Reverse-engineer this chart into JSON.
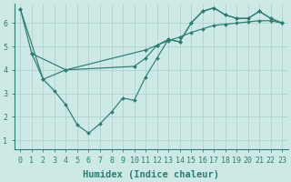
{
  "bg_color": "#cce9e6",
  "line_color": "#2e7d6e",
  "grid_color": "#aed4cf",
  "xlabel": "Humidex (Indice chaleur)",
  "xlabel_fontsize": 7.5,
  "tick_fontsize": 6.0,
  "xlim": [
    -0.5,
    23.5
  ],
  "ylim": [
    0.6,
    6.85
  ],
  "yticks": [
    1,
    2,
    3,
    4,
    5,
    6
  ],
  "xticks": [
    0,
    1,
    2,
    3,
    4,
    5,
    6,
    7,
    8,
    9,
    10,
    11,
    12,
    13,
    14,
    15,
    16,
    17,
    18,
    19,
    20,
    21,
    22,
    23
  ],
  "series": [
    {
      "x": [
        0,
        1,
        2,
        3,
        4,
        5,
        6,
        7,
        8,
        9,
        10,
        11,
        12,
        13,
        14,
        15,
        16,
        17,
        18,
        19,
        20,
        21,
        22,
        23
      ],
      "y": [
        6.6,
        4.7,
        3.6,
        3.1,
        2.5,
        1.65,
        1.3,
        1.7,
        2.2,
        2.8,
        2.7,
        3.7,
        4.5,
        5.3,
        5.2,
        6.0,
        6.5,
        6.65,
        6.35,
        6.2,
        6.2,
        6.5,
        6.2,
        6.0
      ]
    },
    {
      "x": [
        1,
        4,
        11,
        12,
        13,
        14,
        15,
        16,
        17,
        18,
        19,
        20,
        21,
        22,
        23
      ],
      "y": [
        4.7,
        4.0,
        4.85,
        5.05,
        5.25,
        5.4,
        5.6,
        5.75,
        5.9,
        5.95,
        6.0,
        6.05,
        6.1,
        6.1,
        6.0
      ]
    },
    {
      "x": [
        0,
        2,
        4,
        10,
        11,
        12,
        13,
        14,
        15,
        16,
        17,
        18,
        19,
        20,
        21,
        22,
        23
      ],
      "y": [
        6.6,
        3.6,
        4.0,
        4.15,
        4.5,
        5.05,
        5.3,
        5.2,
        6.0,
        6.5,
        6.65,
        6.35,
        6.2,
        6.2,
        6.5,
        6.2,
        6.0
      ]
    }
  ]
}
